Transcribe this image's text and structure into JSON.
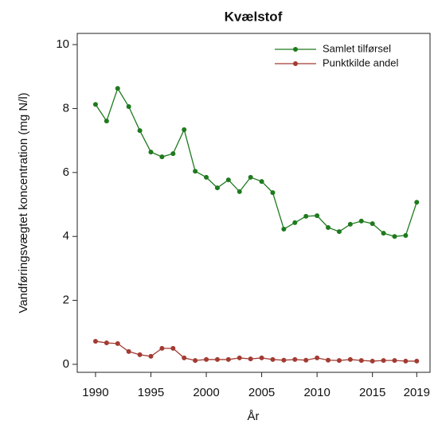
{
  "chart_data": {
    "type": "line",
    "title": "Kvælstof",
    "x_label": "År",
    "y_label": "Vandføringsvægtet koncentration (mg N/l)",
    "x": [
      1990,
      1991,
      1992,
      1993,
      1994,
      1995,
      1996,
      1997,
      1998,
      1999,
      2000,
      2001,
      2002,
      2003,
      2004,
      2005,
      2006,
      2007,
      2008,
      2009,
      2010,
      2011,
      2012,
      2013,
      2014,
      2015,
      2016,
      2017,
      2018,
      2019
    ],
    "series": [
      {
        "name": "Samlet tilførsel",
        "color": "#1e7a1e",
        "values": [
          8.13,
          7.61,
          8.63,
          8.06,
          7.31,
          6.64,
          6.49,
          6.59,
          7.34,
          6.04,
          5.85,
          5.52,
          5.77,
          5.4,
          5.85,
          5.72,
          5.37,
          4.23,
          4.43,
          4.63,
          4.65,
          4.28,
          4.15,
          4.38,
          4.48,
          4.4,
          4.1,
          4.0,
          4.03,
          5.07
        ]
      },
      {
        "name": "Punktkilde andel",
        "color": "#a23b32",
        "values": [
          0.72,
          0.67,
          0.65,
          0.4,
          0.3,
          0.25,
          0.5,
          0.5,
          0.2,
          0.12,
          0.15,
          0.15,
          0.15,
          0.2,
          0.17,
          0.2,
          0.15,
          0.13,
          0.15,
          0.13,
          0.2,
          0.13,
          0.12,
          0.15,
          0.12,
          0.1,
          0.12,
          0.12,
          0.1,
          0.1
        ]
      }
    ],
    "xlim": [
      1988.35,
      2020.2
    ],
    "ylim": [
      -0.25,
      10.35
    ],
    "xticks": [
      1990,
      1995,
      2000,
      2005,
      2010,
      2015,
      2019
    ],
    "yticks": [
      0,
      2,
      4,
      6,
      8,
      10
    ],
    "legend": "upper right"
  }
}
